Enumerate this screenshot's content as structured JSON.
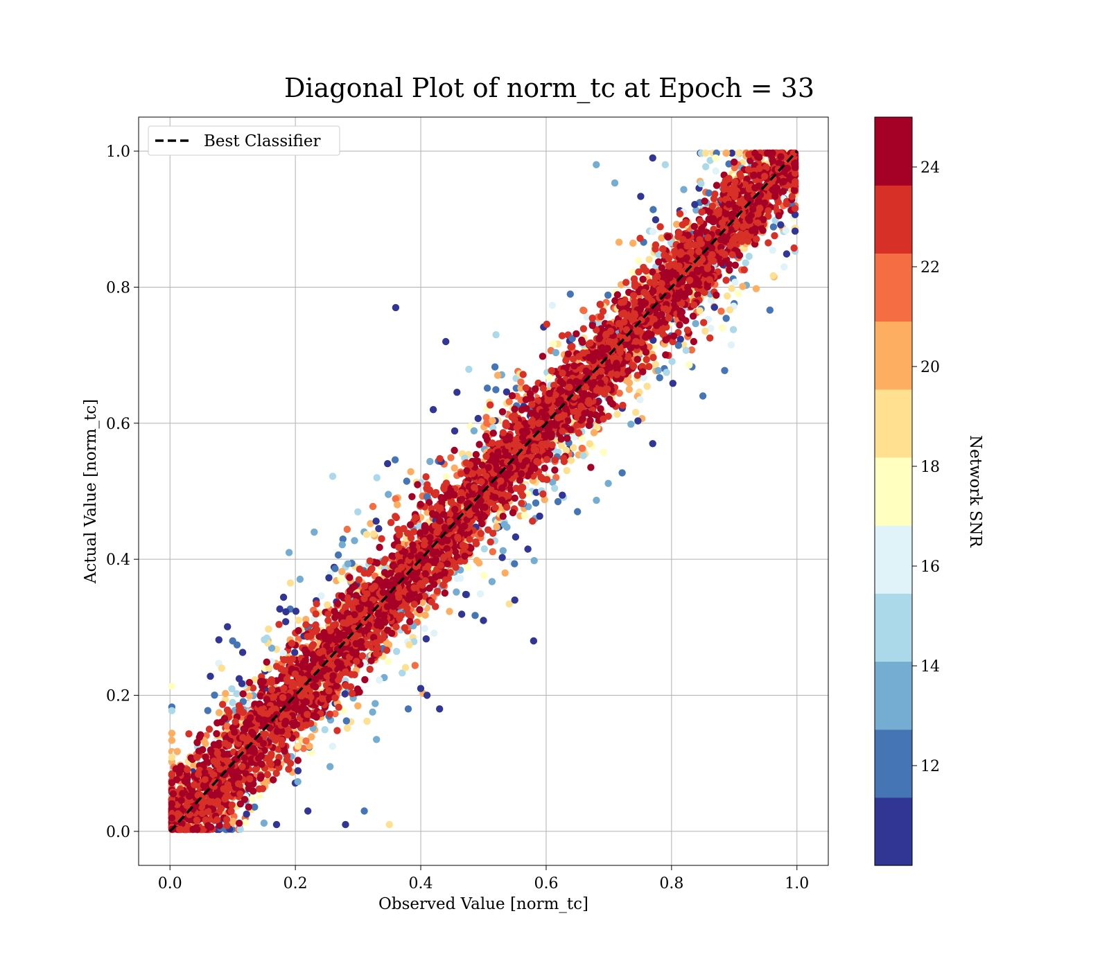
{
  "chart_data": {
    "type": "scatter",
    "title": "Diagonal Plot of norm_tc at Epoch = 33",
    "xlabel": "Observed Value [norm_tc]",
    "ylabel": "Actual Value [norm_tc]",
    "xlim": [
      -0.05,
      1.05
    ],
    "ylim": [
      -0.05,
      1.05
    ],
    "x_ticks": [
      "0.0",
      "0.2",
      "0.4",
      "0.6",
      "0.8",
      "1.0"
    ],
    "y_ticks": [
      "0.0",
      "0.2",
      "0.4",
      "0.6",
      "0.8",
      "1.0"
    ],
    "grid": true,
    "legend": {
      "position": "top-left",
      "entries": [
        {
          "label": "Best Classifier",
          "style": "dashed",
          "color": "#000000"
        }
      ]
    },
    "reference_line": {
      "label": "Best Classifier",
      "x": [
        0,
        1
      ],
      "y": [
        0,
        1
      ]
    },
    "colorbar": {
      "label": "Network SNR",
      "range": [
        10,
        25
      ],
      "ticks": [
        "12",
        "14",
        "16",
        "18",
        "20",
        "22",
        "24"
      ],
      "colors": [
        "#313695",
        "#4575b4",
        "#74add1",
        "#abd9e9",
        "#e0f3f8",
        "#ffffbf",
        "#fee090",
        "#fdae61",
        "#f46d43",
        "#d73027",
        "#a50026"
      ]
    },
    "series": [
      {
        "points": [
          {
            "x": 0.36,
            "y": 0.77,
            "snr": 10.5
          },
          {
            "x": 0.44,
            "y": 0.72,
            "snr": 10.5
          },
          {
            "x": 0.52,
            "y": 0.73,
            "snr": 14.5
          },
          {
            "x": 0.68,
            "y": 0.98,
            "snr": 13.0
          },
          {
            "x": 0.77,
            "y": 0.99,
            "snr": 10.5
          },
          {
            "x": 0.79,
            "y": 0.98,
            "snr": 15.0
          },
          {
            "x": 0.19,
            "y": 0.41,
            "snr": 13.0
          },
          {
            "x": 0.1,
            "y": 0.28,
            "snr": 12.0
          },
          {
            "x": 0.58,
            "y": 0.28,
            "snr": 10.5
          },
          {
            "x": 0.55,
            "y": 0.34,
            "snr": 10.5
          },
          {
            "x": 0.4,
            "y": 0.21,
            "snr": 10.5
          },
          {
            "x": 0.41,
            "y": 0.2,
            "snr": 10.5
          },
          {
            "x": 0.38,
            "y": 0.18,
            "snr": 12.5
          },
          {
            "x": 0.43,
            "y": 0.18,
            "snr": 10.5
          },
          {
            "x": 0.31,
            "y": 0.03,
            "snr": 12.0
          },
          {
            "x": 0.28,
            "y": 0.01,
            "snr": 10.5
          },
          {
            "x": 0.35,
            "y": 0.01,
            "snr": 18.5
          },
          {
            "x": 0.22,
            "y": 0.03,
            "snr": 10.5
          },
          {
            "x": 0.17,
            "y": 0.01,
            "snr": 10.5
          },
          {
            "x": 0.85,
            "y": 0.64,
            "snr": 12.0
          },
          {
            "x": 0.77,
            "y": 0.57,
            "snr": 10.5
          },
          {
            "x": 0.5,
            "y": 0.31,
            "snr": 10.5
          },
          {
            "x": 0.65,
            "y": 0.47,
            "snr": 12.5
          },
          {
            "x": 0.23,
            "y": 0.44,
            "snr": 13.0
          },
          {
            "x": 0.33,
            "y": 0.52,
            "snr": 14.5
          },
          {
            "x": 0.42,
            "y": 0.62,
            "snr": 10.5
          }
        ]
      }
    ]
  }
}
